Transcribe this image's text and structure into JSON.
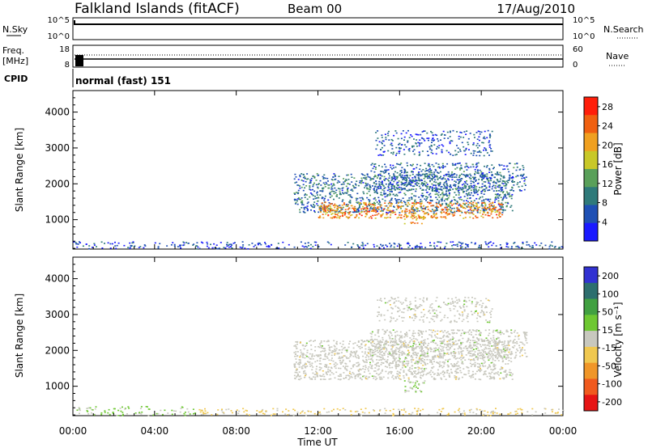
{
  "header": {
    "title": "Falkland Islands (fitACF)",
    "beam": "Beam 00",
    "date": "17/Aug/2010"
  },
  "aux_panels": {
    "nsky_label": "N.Sky",
    "nsky_ticks": [
      "10^5",
      "10^0"
    ],
    "nsearch_label": "N.Search",
    "nsearch_ticks": [
      "10^5",
      "10^0"
    ],
    "freq_label_1": "Freq.",
    "freq_label_2": "[MHz]",
    "freq_ticks": [
      "18",
      "8"
    ],
    "nave_label": "Nave",
    "nave_ticks": [
      "60",
      "0"
    ],
    "cpid_label": "CPID",
    "cpid_value": "normal (fast) 151"
  },
  "colors": {
    "power_scale": [
      "#1a1aff",
      "#1f50b4",
      "#2f7a7a",
      "#5aa05a",
      "#c8c828",
      "#f0a020",
      "#f06010",
      "#ff1e0a"
    ],
    "velocity_scale": [
      "#3232d2",
      "#2d6e6e",
      "#41a041",
      "#6ec832",
      "#c8c8be",
      "#f0c850",
      "#f09628",
      "#f05a1e",
      "#e61414"
    ]
  },
  "chart_data": [
    {
      "type": "heatmap",
      "name": "power",
      "ylabel": "Slant Range [km]",
      "xlabel": "",
      "x_ticks": [
        "00:00",
        "04:00",
        "08:00",
        "12:00",
        "16:00",
        "20:00",
        "00:00"
      ],
      "xlim_hours": [
        0,
        24
      ],
      "y_ticks": [
        1000,
        2000,
        3000,
        4000
      ],
      "ylim": [
        180,
        4600
      ],
      "colorbar_label": "Power [dB]",
      "colorbar_ticks": [
        4,
        8,
        12,
        16,
        20,
        24,
        28
      ],
      "colorbar_range": [
        0,
        30
      ],
      "regions": [
        {
          "t0": 0.0,
          "t1": 24.0,
          "r0": 200,
          "r1": 400,
          "level": 5,
          "density": 0.35
        },
        {
          "t0": 10.8,
          "t1": 21.5,
          "r0": 1200,
          "r1": 2300,
          "level": 8,
          "density": 0.55
        },
        {
          "t0": 12.0,
          "t1": 21.0,
          "r0": 1050,
          "r1": 1500,
          "level": 22,
          "density": 0.65
        },
        {
          "t0": 14.5,
          "t1": 22.2,
          "r0": 1800,
          "r1": 2600,
          "level": 7,
          "density": 0.45
        },
        {
          "t0": 14.8,
          "t1": 20.5,
          "r0": 2800,
          "r1": 3500,
          "level": 6,
          "density": 0.35
        },
        {
          "t0": 16.2,
          "t1": 17.2,
          "r0": 900,
          "r1": 1200,
          "level": 20,
          "density": 0.55
        }
      ]
    },
    {
      "type": "heatmap",
      "name": "velocity",
      "ylabel": "Slant Range [km]",
      "xlabel": "Time UT",
      "x_ticks": [
        "00:00",
        "04:00",
        "08:00",
        "12:00",
        "16:00",
        "20:00",
        "00:00"
      ],
      "xlim_hours": [
        0,
        24
      ],
      "y_ticks": [
        1000,
        2000,
        3000,
        4000
      ],
      "ylim": [
        180,
        4600
      ],
      "colorbar_label": "Velocity [m s⁻¹]",
      "colorbar_ticks": [
        200,
        100,
        50,
        15,
        -15,
        -50,
        -100,
        -200
      ],
      "colorbar_range": [
        -250,
        250
      ],
      "regions": [
        {
          "t0": 0.0,
          "t1": 6.0,
          "r0": 200,
          "r1": 450,
          "level": 40,
          "density": 0.3
        },
        {
          "t0": 6.0,
          "t1": 24.0,
          "r0": 200,
          "r1": 400,
          "level": -40,
          "density": 0.3
        },
        {
          "t0": 10.8,
          "t1": 21.5,
          "r0": 1200,
          "r1": 2300,
          "level": 0,
          "density": 0.6
        },
        {
          "t0": 14.5,
          "t1": 22.2,
          "r0": 1800,
          "r1": 2600,
          "level": 0,
          "density": 0.5
        },
        {
          "t0": 14.8,
          "t1": 20.5,
          "r0": 2800,
          "r1": 3500,
          "level": 0,
          "density": 0.35
        },
        {
          "t0": 16.2,
          "t1": 17.2,
          "r0": 850,
          "r1": 1200,
          "level": 30,
          "density": 0.5
        }
      ]
    }
  ]
}
